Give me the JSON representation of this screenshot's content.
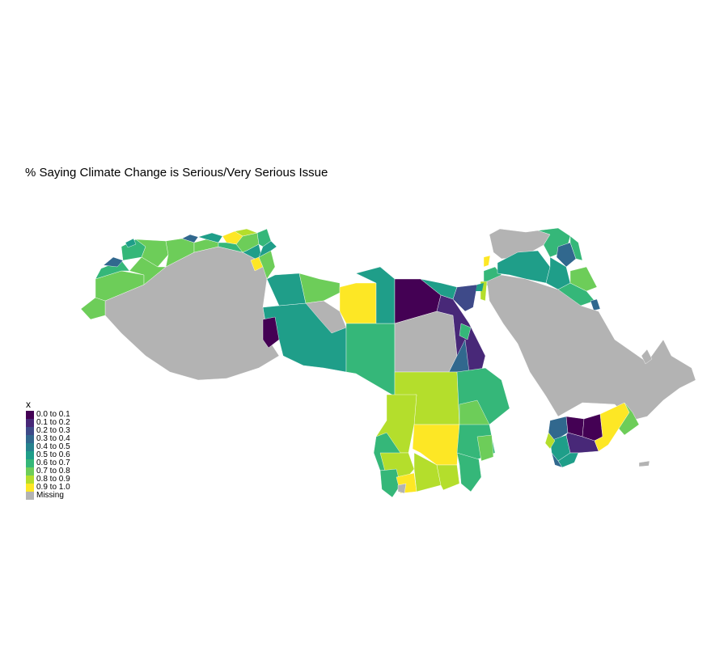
{
  "title": "% Saying Climate Change is Serious/Very Serious Issue",
  "legend": {
    "title": "x",
    "items": [
      {
        "label": "0.0 to 0.1",
        "color": "#440154"
      },
      {
        "label": "0.1 to 0.2",
        "color": "#482878"
      },
      {
        "label": "0.2 to 0.3",
        "color": "#3E4A89"
      },
      {
        "label": "0.3 to 0.4",
        "color": "#31688E"
      },
      {
        "label": "0.4 to 0.5",
        "color": "#26828E"
      },
      {
        "label": "0.5 to 0.6",
        "color": "#1F9E89"
      },
      {
        "label": "0.6 to 0.7",
        "color": "#35B779"
      },
      {
        "label": "0.7 to 0.8",
        "color": "#6DCD59"
      },
      {
        "label": "0.8 to 0.9",
        "color": "#B4DE2C"
      },
      {
        "label": "0.9 to 1.0",
        "color": "#FDE725"
      },
      {
        "label": "Missing",
        "color": "#B3B3B3"
      }
    ]
  }
}
